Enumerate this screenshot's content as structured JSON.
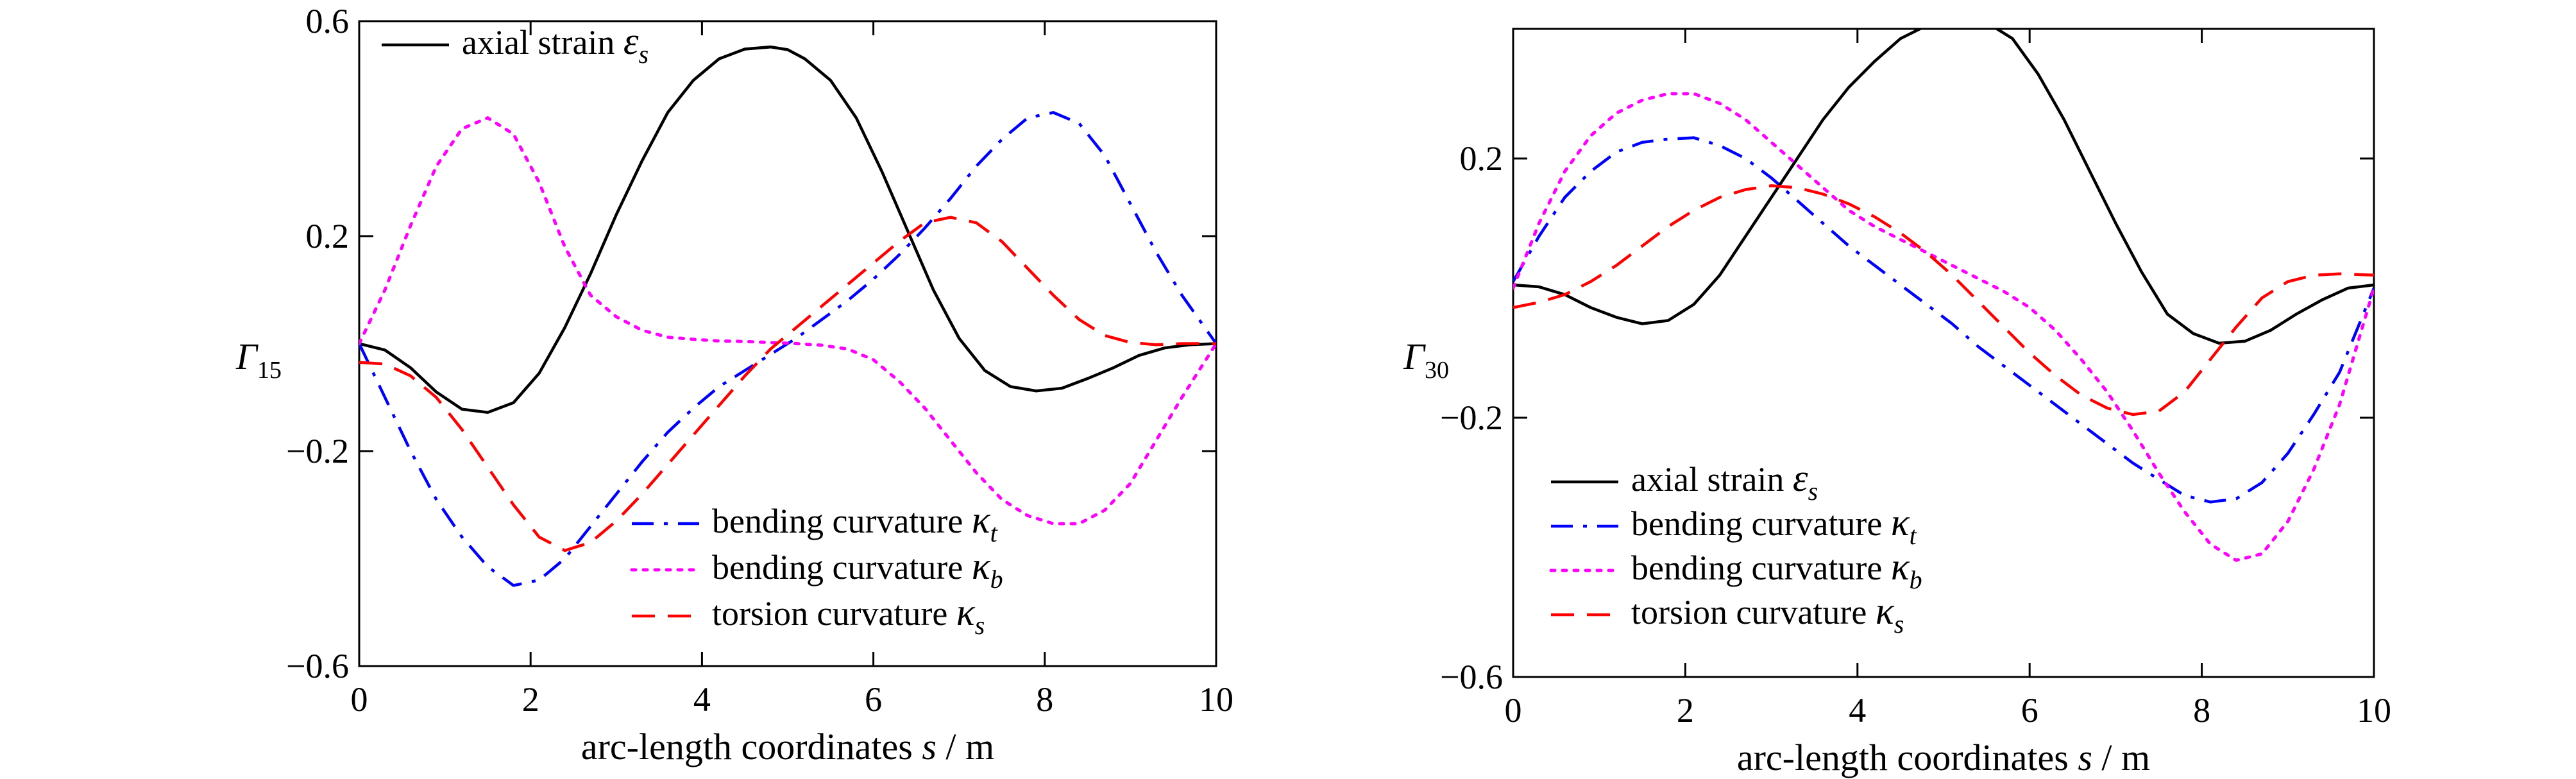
{
  "chart_data": [
    {
      "type": "line",
      "ylabel_main": "Γ",
      "ylabel_sub": "15",
      "xlabel": "arc-length coordinates s / m",
      "xlim": [
        0,
        10
      ],
      "ylim": [
        -0.6,
        0.6
      ],
      "xticks": [
        "0",
        "2",
        "4",
        "6",
        "8",
        "10"
      ],
      "yticks": [
        "−0.6",
        "−0.2",
        "0.2",
        "0.6"
      ],
      "grid": false,
      "series": [
        {
          "name": "axial strain ε_s",
          "label_text": "axial strain ",
          "symbol": "ε",
          "subscript": "s",
          "color": "#000000",
          "dash": "solid",
          "x": [
            0,
            0.3,
            0.6,
            0.9,
            1.2,
            1.5,
            1.8,
            2.1,
            2.4,
            2.7,
            3.0,
            3.3,
            3.6,
            3.9,
            4.2,
            4.5,
            4.8,
            5.0,
            5.2,
            5.5,
            5.8,
            6.1,
            6.4,
            6.7,
            7.0,
            7.3,
            7.6,
            7.9,
            8.2,
            8.5,
            8.8,
            9.1,
            9.4,
            9.7,
            10.0
          ],
          "y": [
            0.0,
            -0.012,
            -0.045,
            -0.09,
            -0.122,
            -0.128,
            -0.11,
            -0.055,
            0.03,
            0.13,
            0.24,
            0.34,
            0.43,
            0.49,
            0.53,
            0.548,
            0.552,
            0.547,
            0.53,
            0.49,
            0.42,
            0.32,
            0.21,
            0.1,
            0.01,
            -0.05,
            -0.08,
            -0.088,
            -0.083,
            -0.065,
            -0.045,
            -0.022,
            -0.008,
            -0.002,
            0.0
          ]
        },
        {
          "name": "bending curvature κ_t",
          "label_text": "bending curvature ",
          "symbol": "κ",
          "subscript": "t",
          "color": "#0000ff",
          "dash": "dashdot",
          "x": [
            0,
            0.3,
            0.6,
            0.9,
            1.2,
            1.5,
            1.8,
            2.1,
            2.4,
            2.7,
            3.0,
            3.3,
            3.6,
            3.9,
            4.2,
            4.5,
            4.8,
            5.1,
            5.4,
            5.7,
            6.0,
            6.3,
            6.6,
            6.9,
            7.2,
            7.5,
            7.8,
            8.1,
            8.4,
            8.7,
            9.0,
            9.3,
            9.6,
            10.0
          ],
          "y": [
            0.0,
            -0.1,
            -0.2,
            -0.29,
            -0.36,
            -0.415,
            -0.45,
            -0.44,
            -0.4,
            -0.34,
            -0.28,
            -0.22,
            -0.165,
            -0.12,
            -0.08,
            -0.05,
            -0.02,
            0.01,
            0.045,
            0.08,
            0.12,
            0.165,
            0.215,
            0.27,
            0.33,
            0.38,
            0.42,
            0.43,
            0.41,
            0.35,
            0.26,
            0.17,
            0.09,
            0.0
          ]
        },
        {
          "name": "bending curvature κ_b",
          "label_text": "bending curvature ",
          "symbol": "κ",
          "subscript": "b",
          "color": "#ff00ff",
          "dash": "dotted",
          "x": [
            0,
            0.3,
            0.6,
            0.9,
            1.2,
            1.5,
            1.8,
            2.1,
            2.4,
            2.7,
            3.0,
            3.3,
            3.6,
            3.9,
            4.2,
            4.5,
            4.8,
            5.1,
            5.4,
            5.7,
            6.0,
            6.3,
            6.6,
            6.9,
            7.2,
            7.5,
            7.8,
            8.1,
            8.4,
            8.7,
            9.0,
            9.3,
            9.6,
            10.0
          ],
          "y": [
            0.0,
            0.1,
            0.22,
            0.33,
            0.4,
            0.42,
            0.39,
            0.3,
            0.18,
            0.09,
            0.05,
            0.025,
            0.012,
            0.008,
            0.005,
            0.004,
            0.002,
            0.0,
            -0.003,
            -0.01,
            -0.03,
            -0.07,
            -0.12,
            -0.18,
            -0.24,
            -0.29,
            -0.32,
            -0.335,
            -0.335,
            -0.31,
            -0.26,
            -0.18,
            -0.1,
            0.0
          ]
        },
        {
          "name": "torsion curvature κ_s",
          "label_text": "torsion curvature ",
          "symbol": "κ",
          "subscript": "s",
          "color": "#ff0000",
          "dash": "dashed",
          "x": [
            0,
            0.3,
            0.6,
            0.9,
            1.2,
            1.5,
            1.8,
            2.1,
            2.4,
            2.7,
            3.0,
            3.3,
            3.6,
            3.9,
            4.2,
            4.5,
            4.8,
            5.1,
            5.4,
            5.7,
            6.0,
            6.3,
            6.6,
            6.9,
            7.2,
            7.5,
            7.8,
            8.1,
            8.4,
            8.7,
            9.0,
            9.3,
            9.6,
            10.0
          ],
          "y": [
            -0.035,
            -0.038,
            -0.06,
            -0.1,
            -0.16,
            -0.23,
            -0.3,
            -0.36,
            -0.385,
            -0.37,
            -0.33,
            -0.28,
            -0.225,
            -0.17,
            -0.115,
            -0.06,
            -0.01,
            0.03,
            0.07,
            0.11,
            0.15,
            0.19,
            0.225,
            0.235,
            0.225,
            0.19,
            0.14,
            0.09,
            0.045,
            0.015,
            0.002,
            -0.002,
            0.0,
            0.0
          ]
        }
      ]
    },
    {
      "type": "line",
      "ylabel_main": "Γ",
      "ylabel_sub": "30",
      "xlabel": "arc-length coordinates s / m",
      "xlim": [
        0,
        10
      ],
      "ylim": [
        -0.6,
        0.4
      ],
      "xticks": [
        "0",
        "2",
        "4",
        "6",
        "8",
        "10"
      ],
      "yticks": [
        "−0.6",
        "−0.2",
        "0.2"
      ],
      "grid": false,
      "series": [
        {
          "name": "axial strain ε_s",
          "label_text": "axial strain ",
          "symbol": "ε",
          "subscript": "s",
          "color": "#000000",
          "dash": "solid",
          "x": [
            0,
            0.3,
            0.6,
            0.9,
            1.2,
            1.5,
            1.8,
            2.1,
            2.4,
            2.7,
            3.0,
            3.3,
            3.6,
            3.9,
            4.2,
            4.5,
            4.8,
            5.1,
            5.3,
            5.5,
            5.8,
            6.1,
            6.4,
            6.7,
            7.0,
            7.3,
            7.6,
            7.9,
            8.2,
            8.5,
            8.8,
            9.1,
            9.4,
            9.7,
            10.0
          ],
          "y": [
            0.005,
            0.002,
            -0.01,
            -0.03,
            -0.045,
            -0.055,
            -0.05,
            -0.025,
            0.02,
            0.08,
            0.14,
            0.2,
            0.26,
            0.31,
            0.35,
            0.385,
            0.405,
            0.415,
            0.415,
            0.41,
            0.385,
            0.33,
            0.26,
            0.18,
            0.1,
            0.025,
            -0.04,
            -0.07,
            -0.085,
            -0.082,
            -0.065,
            -0.04,
            -0.018,
            0.0,
            0.005
          ]
        },
        {
          "name": "bending curvature κ_t",
          "label_text": "bending curvature ",
          "symbol": "κ",
          "subscript": "t",
          "color": "#0000ff",
          "dash": "dashdot",
          "x": [
            0,
            0.3,
            0.6,
            0.9,
            1.2,
            1.5,
            1.8,
            2.1,
            2.4,
            2.7,
            3.0,
            3.3,
            3.6,
            3.9,
            4.2,
            4.5,
            4.8,
            5.1,
            5.4,
            5.7,
            6.0,
            6.3,
            6.6,
            6.9,
            7.2,
            7.5,
            7.8,
            8.1,
            8.4,
            8.7,
            9.0,
            9.3,
            9.6,
            10.0
          ],
          "y": [
            0.01,
            0.08,
            0.14,
            0.18,
            0.21,
            0.225,
            0.23,
            0.232,
            0.22,
            0.2,
            0.17,
            0.135,
            0.1,
            0.065,
            0.035,
            0.005,
            -0.025,
            -0.055,
            -0.09,
            -0.12,
            -0.15,
            -0.18,
            -0.21,
            -0.24,
            -0.27,
            -0.295,
            -0.32,
            -0.33,
            -0.325,
            -0.3,
            -0.255,
            -0.195,
            -0.13,
            0.0
          ]
        },
        {
          "name": "bending curvature κ_b",
          "label_text": "bending curvature ",
          "symbol": "κ",
          "subscript": "b",
          "color": "#ff00ff",
          "dash": "dotted",
          "x": [
            0,
            0.3,
            0.6,
            0.9,
            1.2,
            1.5,
            1.8,
            2.1,
            2.4,
            2.7,
            3.0,
            3.3,
            3.6,
            3.9,
            4.2,
            4.5,
            4.8,
            5.1,
            5.4,
            5.7,
            6.0,
            6.3,
            6.6,
            6.9,
            7.2,
            7.5,
            7.8,
            8.1,
            8.4,
            8.7,
            9.0,
            9.3,
            9.6,
            10.0
          ],
          "y": [
            0.0,
            0.1,
            0.18,
            0.235,
            0.27,
            0.29,
            0.3,
            0.3,
            0.285,
            0.26,
            0.225,
            0.19,
            0.155,
            0.12,
            0.095,
            0.075,
            0.055,
            0.035,
            0.015,
            -0.005,
            -0.03,
            -0.065,
            -0.11,
            -0.16,
            -0.22,
            -0.285,
            -0.345,
            -0.395,
            -0.42,
            -0.41,
            -0.36,
            -0.28,
            -0.18,
            0.0
          ]
        },
        {
          "name": "torsion curvature κ_s",
          "label_text": "torsion curvature ",
          "symbol": "κ",
          "subscript": "s",
          "color": "#ff0000",
          "dash": "dashed",
          "x": [
            0,
            0.3,
            0.6,
            0.9,
            1.2,
            1.5,
            1.8,
            2.1,
            2.4,
            2.7,
            3.0,
            3.3,
            3.6,
            3.9,
            4.2,
            4.5,
            4.8,
            5.1,
            5.4,
            5.7,
            6.0,
            6.3,
            6.6,
            6.9,
            7.2,
            7.5,
            7.8,
            8.1,
            8.4,
            8.7,
            9.0,
            9.3,
            9.6,
            10.0
          ],
          "y": [
            -0.03,
            -0.022,
            -0.01,
            0.01,
            0.035,
            0.065,
            0.095,
            0.12,
            0.14,
            0.152,
            0.158,
            0.155,
            0.145,
            0.13,
            0.11,
            0.085,
            0.055,
            0.02,
            -0.02,
            -0.06,
            -0.1,
            -0.135,
            -0.165,
            -0.185,
            -0.195,
            -0.19,
            -0.16,
            -0.11,
            -0.06,
            -0.015,
            0.01,
            0.02,
            0.022,
            0.02
          ]
        }
      ]
    }
  ]
}
